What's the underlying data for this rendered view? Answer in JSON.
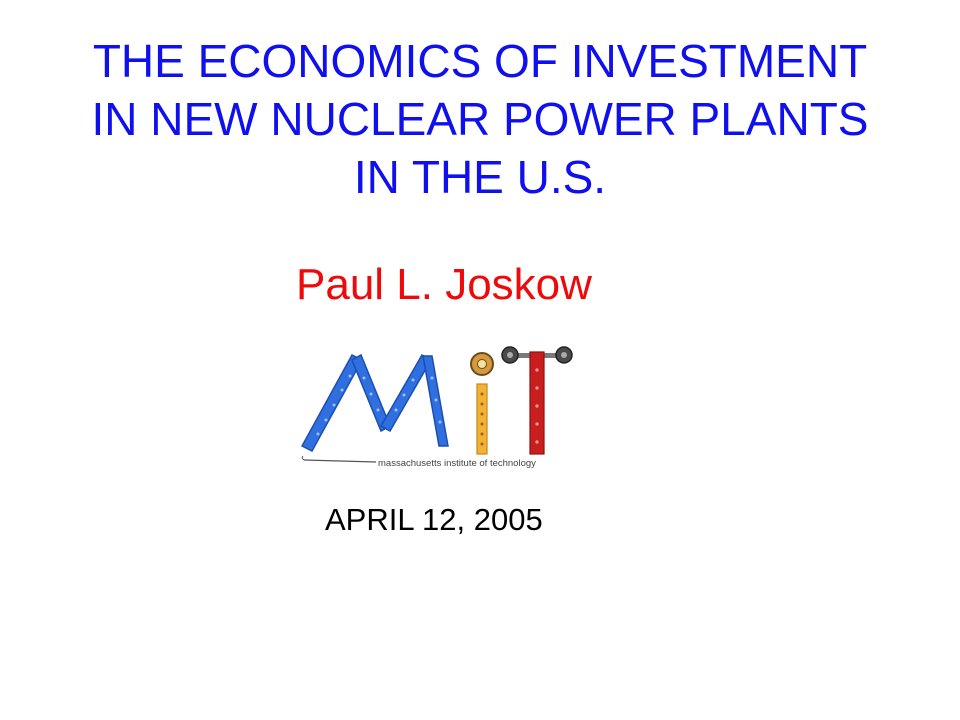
{
  "slide": {
    "title_lines": [
      "THE ECONOMICS OF INVESTMENT",
      "IN NEW NUCLEAR POWER PLANTS",
      "IN THE U.S."
    ],
    "author": "Paul L. Joskow",
    "logo": {
      "name": "mit-logo",
      "caption": "massachusetts institute of technology",
      "colors": {
        "blue": "#2f6fe0",
        "yellow": "#f2b233",
        "red": "#c81e1e",
        "gray": "#555555"
      }
    },
    "date": "APRIL 12, 2005"
  },
  "colors": {
    "title": "#1010ee",
    "author": "#ee0a0a",
    "date": "#000000",
    "background": "#ffffff"
  }
}
